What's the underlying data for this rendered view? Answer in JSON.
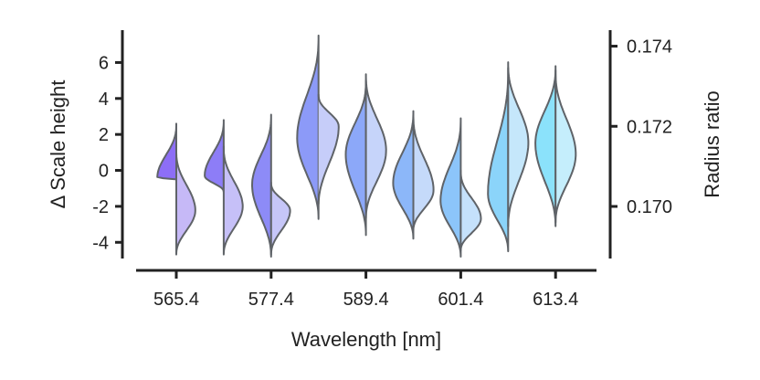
{
  "chart_data": {
    "type": "violin",
    "title": "",
    "xlabel": "Wavelength [nm]",
    "ylabel_left": "Δ Scale height",
    "ylabel_right": "Radius ratio",
    "xtick_labels": [
      "565.4",
      "577.4",
      "589.4",
      "601.4",
      "613.4"
    ],
    "xtick_values": [
      565.4,
      577.4,
      589.4,
      601.4,
      613.4
    ],
    "ylim_left": [
      -4.9,
      7.8
    ],
    "yticks_left": [
      -4,
      -2,
      0,
      2,
      4,
      6
    ],
    "ytick_labels_left": [
      "-4",
      "-2",
      "0",
      "2",
      "4",
      "6"
    ],
    "ylim_right": [
      0.1687,
      0.1744
    ],
    "yticks_right": [
      0.17,
      0.172,
      0.174
    ],
    "ytick_labels_right": [
      "0.170",
      "0.172",
      "0.174"
    ],
    "colors": {
      "left_start": "#8d6ef6",
      "left_end": "#8be2fb",
      "right_start": "#c6b9f7",
      "right_end": "#c5eefc",
      "edge": "#5f6368",
      "axis": "#222222"
    },
    "violins": [
      {
        "wavelength": 565.4,
        "left": {
          "label": "Δ Scale height",
          "low": -0.5,
          "high": 2.6,
          "mode": -0.4,
          "width": 0.8
        },
        "right": {
          "label": "Radius ratio",
          "low": 0.1688,
          "high": 0.1714,
          "mode": 0.1699,
          "width": 0.8
        }
      },
      {
        "wavelength": 571.4,
        "left": {
          "label": "Δ Scale height",
          "low": -1.2,
          "high": 2.8,
          "mode": -0.3,
          "width": 0.8
        },
        "right": {
          "label": "Radius ratio",
          "low": 0.1688,
          "high": 0.1715,
          "mode": 0.17,
          "width": 0.8
        }
      },
      {
        "wavelength": 577.4,
        "left": {
          "label": "Δ Scale height",
          "low": -4.8,
          "high": 3.1,
          "mode": -0.8,
          "width": 0.8
        },
        "right": {
          "label": "Radius ratio",
          "low": 0.1688,
          "high": 0.1706,
          "mode": 0.1699,
          "width": 0.8
        }
      },
      {
        "wavelength": 583.4,
        "left": {
          "label": "Δ Scale height",
          "low": -2.7,
          "high": 7.5,
          "mode": 1.8,
          "width": 0.9
        },
        "right": {
          "label": "Radius ratio",
          "low": 0.17,
          "high": 0.1728,
          "mode": 0.172,
          "width": 0.85
        }
      },
      {
        "wavelength": 589.4,
        "left": {
          "label": "Δ Scale height",
          "low": -3.6,
          "high": 5.0,
          "mode": 0.9,
          "width": 0.85
        },
        "right": {
          "label": "Radius ratio",
          "low": 0.1697,
          "high": 0.1733,
          "mode": 0.1714,
          "width": 0.85
        }
      },
      {
        "wavelength": 595.4,
        "left": {
          "label": "Δ Scale height",
          "low": -3.8,
          "high": 3.3,
          "mode": -0.7,
          "width": 0.85
        },
        "right": {
          "label": "Radius ratio",
          "low": 0.1694,
          "high": 0.1723,
          "mode": 0.1704,
          "width": 0.85
        }
      },
      {
        "wavelength": 601.4,
        "left": {
          "label": "Δ Scale height",
          "low": -4.8,
          "high": 2.9,
          "mode": -1.7,
          "width": 0.85
        },
        "right": {
          "label": "Radius ratio",
          "low": 0.1689,
          "high": 0.1709,
          "mode": 0.1697,
          "width": 0.85
        }
      },
      {
        "wavelength": 607.4,
        "left": {
          "label": "Δ Scale height",
          "low": -4.5,
          "high": 5.7,
          "mode": -1.3,
          "width": 0.85
        },
        "right": {
          "label": "Radius ratio",
          "low": 0.1695,
          "high": 0.1736,
          "mode": 0.1716,
          "width": 0.85
        }
      },
      {
        "wavelength": 613.4,
        "left": {
          "label": "Δ Scale height",
          "low": -3.1,
          "high": 5.8,
          "mode": 1.5,
          "width": 0.85
        },
        "right": {
          "label": "Radius ratio",
          "low": 0.1696,
          "high": 0.1734,
          "mode": 0.1713,
          "width": 0.85
        }
      }
    ]
  }
}
